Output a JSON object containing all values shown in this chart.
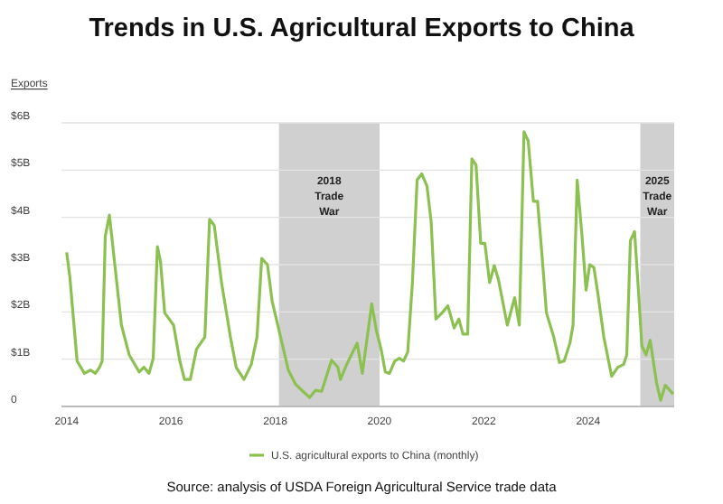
{
  "chart_data": {
    "type": "line",
    "title": "Trends in U.S. Agricultural Exports to China",
    "ylabel": "Exports",
    "xlim": [
      2013.9,
      2025.65
    ],
    "xticks": [
      2014,
      2016,
      2018,
      2020,
      2022,
      2024
    ],
    "ylim": [
      0,
      6
    ],
    "yticks": [
      0,
      {
        "value": 1,
        "label": "$1B"
      },
      {
        "value": 2,
        "label": "$2B"
      },
      {
        "value": 3,
        "label": "$3B"
      },
      {
        "value": 4,
        "label": "$4B"
      },
      {
        "value": 5,
        "label": "$5B"
      },
      {
        "value": 6,
        "label": "$6B"
      }
    ],
    "grid": "y",
    "legend": "bottom",
    "marker": "none",
    "line_style": "solid",
    "bands": [
      {
        "axis": "x",
        "from": 2018.07,
        "to": 2020.0,
        "label": "2018 Trade War",
        "color": "#d0d0d0"
      },
      {
        "axis": "x",
        "from": 2025.0,
        "to": 2025.65,
        "label": "2025 Trade War",
        "color": "#d0d0d0"
      }
    ],
    "series": [
      {
        "name": "U.S. agricultural exports to China (monthly)",
        "color": "#8cc152",
        "x": [
          2014.0,
          2014.06,
          2014.2,
          2014.34,
          2014.46,
          2014.55,
          2014.63,
          2014.68,
          2014.74,
          2014.82,
          2014.91,
          2015.05,
          2015.2,
          2015.39,
          2015.48,
          2015.58,
          2015.66,
          2015.74,
          2015.8,
          2015.88,
          2016.05,
          2016.17,
          2016.26,
          2016.37,
          2016.49,
          2016.65,
          2016.74,
          2016.83,
          2016.97,
          2017.14,
          2017.25,
          2017.4,
          2017.54,
          2017.65,
          2017.74,
          2017.85,
          2017.94,
          2018.13,
          2018.25,
          2018.39,
          2018.53,
          2018.66,
          2018.77,
          2018.89,
          2019.08,
          2019.2,
          2019.25,
          2019.37,
          2019.57,
          2019.67,
          2019.85,
          2019.94,
          2020.03,
          2020.11,
          2020.19,
          2020.29,
          2020.38,
          2020.46,
          2020.54,
          2020.63,
          2020.72,
          2020.81,
          2020.91,
          2020.99,
          2021.08,
          2021.2,
          2021.31,
          2021.43,
          2021.52,
          2021.6,
          2021.69,
          2021.77,
          2021.85,
          2021.94,
          2022.02,
          2022.11,
          2022.2,
          2022.28,
          2022.36,
          2022.45,
          2022.59,
          2022.68,
          2022.77,
          2022.85,
          2022.95,
          2023.03,
          2023.12,
          2023.2,
          2023.34,
          2023.45,
          2023.54,
          2023.65,
          2023.71,
          2023.79,
          2023.88,
          2023.96,
          2024.03,
          2024.11,
          2024.19,
          2024.3,
          2024.45,
          2024.57,
          2024.68,
          2024.74,
          2024.81,
          2024.89,
          2024.97,
          2025.03,
          2025.11,
          2025.19,
          2025.31,
          2025.39,
          2025.48,
          2025.63
        ],
        "values": [
          3.26,
          2.75,
          0.96,
          0.7,
          0.77,
          0.7,
          0.83,
          0.96,
          3.6,
          4.05,
          3.13,
          1.72,
          1.09,
          0.73,
          0.83,
          0.7,
          1.02,
          3.38,
          3.06,
          1.98,
          1.72,
          0.96,
          0.57,
          0.57,
          1.21,
          1.47,
          3.96,
          3.83,
          2.62,
          1.47,
          0.83,
          0.57,
          0.89,
          1.47,
          3.13,
          3.0,
          2.23,
          1.34,
          0.77,
          0.47,
          0.32,
          0.19,
          0.34,
          0.32,
          0.98,
          0.83,
          0.57,
          0.89,
          1.34,
          0.7,
          2.17,
          1.6,
          1.21,
          0.73,
          0.7,
          0.96,
          1.02,
          0.96,
          1.15,
          2.62,
          4.79,
          4.92,
          4.66,
          3.9,
          1.85,
          1.98,
          2.13,
          1.66,
          1.85,
          1.53,
          1.53,
          5.24,
          5.11,
          3.45,
          3.45,
          2.62,
          2.98,
          2.68,
          2.23,
          1.72,
          2.3,
          1.72,
          5.81,
          5.62,
          4.34,
          4.34,
          3.13,
          1.98,
          1.47,
          0.93,
          0.96,
          1.34,
          1.72,
          4.79,
          3.64,
          2.46,
          3.0,
          2.94,
          2.36,
          1.47,
          0.64,
          0.83,
          0.89,
          1.09,
          3.51,
          3.7,
          2.36,
          1.28,
          1.09,
          1.4,
          0.51,
          0.13,
          0.45,
          0.26
        ]
      }
    ],
    "annotations": [
      "Source: analysis of USDA Foreign Agricultural Service trade data"
    ]
  }
}
